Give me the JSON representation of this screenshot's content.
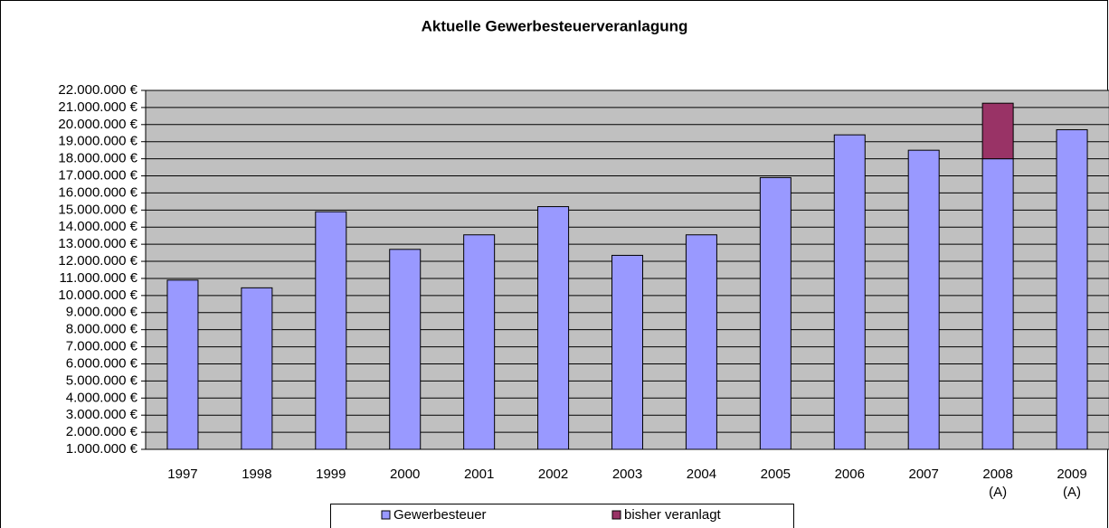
{
  "chart_data": {
    "type": "stacked_bar",
    "title": "Aktuelle Gewerbesteuerveranlagung",
    "categories": [
      "1997",
      "1998",
      "1999",
      "2000",
      "2001",
      "2002",
      "2003",
      "2004",
      "2005",
      "2006",
      "2007",
      "2008\n(A)",
      "2009\n(A)"
    ],
    "series": [
      {
        "name": "Gewerbesteuer",
        "color": "#9999ff",
        "values": [
          9900000,
          9450000,
          13900000,
          11700000,
          12550000,
          14200000,
          11350000,
          12550000,
          15900000,
          18400000,
          17500000,
          17000000,
          18700000
        ]
      },
      {
        "name": "bisher veranlagt",
        "color": "#993366",
        "values": [
          null,
          null,
          null,
          null,
          null,
          null,
          null,
          null,
          null,
          null,
          null,
          3250000,
          null
        ]
      }
    ],
    "ylim": [
      1000000,
      22000000
    ],
    "yticks": [
      {
        "value": 1000000,
        "label": "1.000.000 €"
      },
      {
        "value": 2000000,
        "label": "2.000.000 €"
      },
      {
        "value": 3000000,
        "label": "3.000.000 €"
      },
      {
        "value": 4000000,
        "label": "4.000.000 €"
      },
      {
        "value": 5000000,
        "label": "5.000.000 €"
      },
      {
        "value": 6000000,
        "label": "6.000.000 €"
      },
      {
        "value": 7000000,
        "label": "7.000.000 €"
      },
      {
        "value": 8000000,
        "label": "8.000.000 €"
      },
      {
        "value": 9000000,
        "label": "9.000.000 €"
      },
      {
        "value": 10000000,
        "label": "10.000.000 €"
      },
      {
        "value": 11000000,
        "label": "11.000.000 €"
      },
      {
        "value": 12000000,
        "label": "12.000.000 €"
      },
      {
        "value": 13000000,
        "label": "13.000.000 €"
      },
      {
        "value": 14000000,
        "label": "14.000.000 €"
      },
      {
        "value": 15000000,
        "label": "15.000.000 €"
      },
      {
        "value": 16000000,
        "label": "16.000.000 €"
      },
      {
        "value": 17000000,
        "label": "17.000.000 €"
      },
      {
        "value": 18000000,
        "label": "18.000.000 €"
      },
      {
        "value": 19000000,
        "label": "19.000.000 €"
      },
      {
        "value": 20000000,
        "label": "20.000.000 €"
      },
      {
        "value": 21000000,
        "label": "21.000.000 €"
      },
      {
        "value": 22000000,
        "label": "22.000.000 €"
      }
    ],
    "grid": true
  }
}
